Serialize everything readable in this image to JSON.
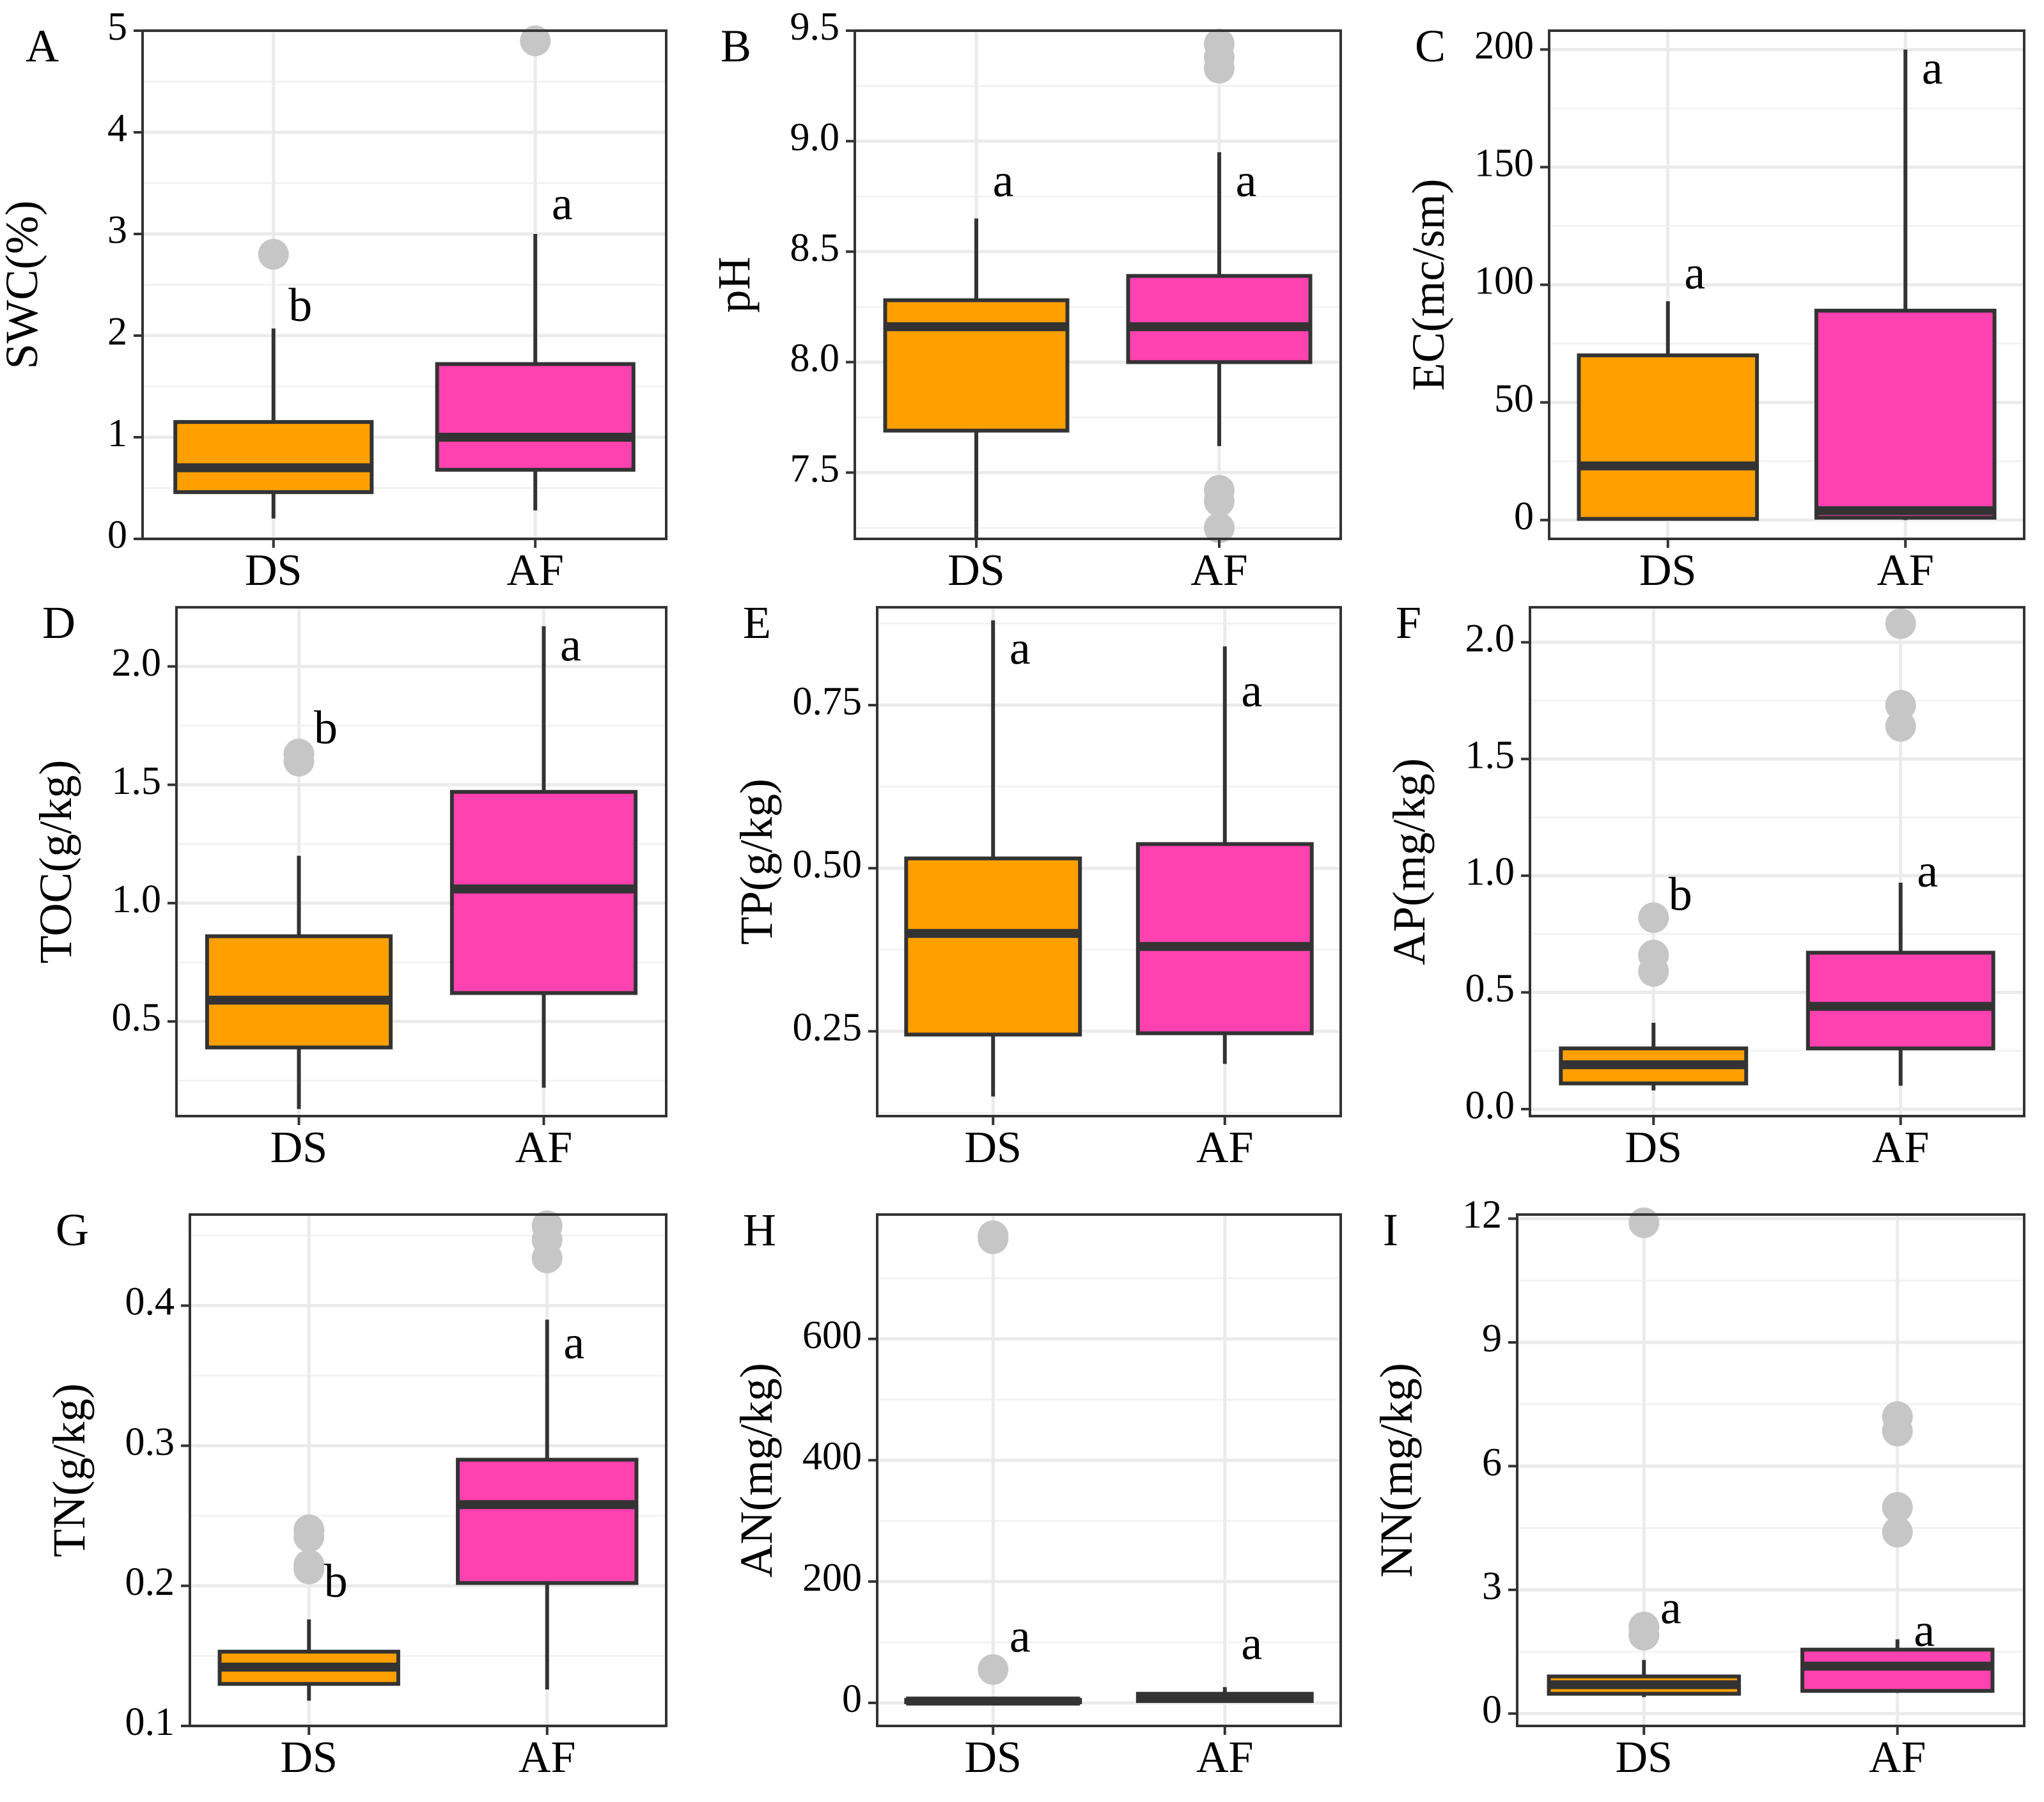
{
  "colors": {
    "DS": "#FFA000",
    "AF": "#FF42B0",
    "outlier": "#C6C6C6",
    "frame": "#333333"
  },
  "chart_data": [
    {
      "panel": "A",
      "type": "box",
      "ylabel": "SWC(%)",
      "ylim": [
        0,
        5
      ],
      "yticks": [
        0,
        1,
        2,
        3,
        4,
        5
      ],
      "ytick_labels": [
        "0",
        "1",
        "2",
        "3",
        "4",
        "5"
      ],
      "categories": [
        "DS",
        "AF"
      ],
      "groups": [
        {
          "name": "DS",
          "whisker_low": 0.2,
          "q1": 0.46,
          "median": 0.7,
          "q3": 1.15,
          "whisker_high": 2.07,
          "outliers": [
            2.8
          ],
          "sig": "b",
          "sig_y": 2.25
        },
        {
          "name": "AF",
          "whisker_low": 0.28,
          "q1": 0.68,
          "median": 1.0,
          "q3": 1.72,
          "whisker_high": 3.0,
          "outliers": [
            4.9
          ],
          "sig": "a",
          "sig_y": 3.25
        }
      ]
    },
    {
      "panel": "B",
      "type": "box",
      "ylabel": "pH",
      "ylim": [
        7.2,
        9.5
      ],
      "yticks": [
        7.5,
        8.0,
        8.5,
        9.0,
        9.5
      ],
      "ytick_labels": [
        "7.5",
        "8.0",
        "8.5",
        "9.0",
        "9.5"
      ],
      "categories": [
        "DS",
        "AF"
      ],
      "groups": [
        {
          "name": "DS",
          "whisker_low": 7.2,
          "q1": 7.69,
          "median": 8.16,
          "q3": 8.28,
          "whisker_high": 8.65,
          "outliers": [],
          "sig": "a",
          "sig_y": 8.8
        },
        {
          "name": "AF",
          "whisker_low": 7.62,
          "q1": 8.0,
          "median": 8.16,
          "q3": 8.39,
          "whisker_high": 8.95,
          "outliers": [
            9.44,
            9.38,
            9.33,
            7.42,
            7.37,
            7.25
          ],
          "sig": "a",
          "sig_y": 8.8
        }
      ]
    },
    {
      "panel": "C",
      "type": "box",
      "ylabel": "EC(mc/sm)",
      "ylim": [
        -8,
        208
      ],
      "yticks": [
        0,
        50,
        100,
        150,
        200
      ],
      "ytick_labels": [
        "0",
        "50",
        "100",
        "150",
        "200"
      ],
      "categories": [
        "DS",
        "AF"
      ],
      "groups": [
        {
          "name": "DS",
          "whisker_low": 0,
          "q1": 0.5,
          "median": 23,
          "q3": 70,
          "whisker_high": 93,
          "outliers": [],
          "sig": "a",
          "sig_y": 103
        },
        {
          "name": "AF",
          "whisker_low": 0,
          "q1": 1,
          "median": 4,
          "q3": 89,
          "whisker_high": 200,
          "outliers": [],
          "sig": "a",
          "sig_y": 190
        }
      ]
    },
    {
      "panel": "D",
      "type": "box",
      "ylabel": "TOC(g/kg)",
      "ylim": [
        0.1,
        2.25
      ],
      "yticks": [
        0.5,
        1.0,
        1.5,
        2.0
      ],
      "ytick_labels": [
        "0.5",
        "1.0",
        "1.5",
        "2.0"
      ],
      "categories": [
        "DS",
        "AF"
      ],
      "groups": [
        {
          "name": "DS",
          "whisker_low": 0.13,
          "q1": 0.39,
          "median": 0.59,
          "q3": 0.86,
          "whisker_high": 1.2,
          "outliers": [
            1.63,
            1.6
          ],
          "sig": "b",
          "sig_y": 1.72
        },
        {
          "name": "AF",
          "whisker_low": 0.22,
          "q1": 0.62,
          "median": 1.06,
          "q3": 1.47,
          "whisker_high": 2.17,
          "outliers": [],
          "sig": "a",
          "sig_y": 2.07
        }
      ]
    },
    {
      "panel": "E",
      "type": "box",
      "ylabel": "TP(g/kg)",
      "ylim": [
        0.12,
        0.9
      ],
      "yticks": [
        0.25,
        0.5,
        0.75
      ],
      "ytick_labels": [
        "0.25",
        "0.50",
        "0.75"
      ],
      "categories": [
        "DS",
        "AF"
      ],
      "groups": [
        {
          "name": "DS",
          "whisker_low": 0.15,
          "q1": 0.245,
          "median": 0.4,
          "q3": 0.515,
          "whisker_high": 0.88,
          "outliers": [],
          "sig": "a",
          "sig_y": 0.83
        },
        {
          "name": "AF",
          "whisker_low": 0.2,
          "q1": 0.247,
          "median": 0.38,
          "q3": 0.537,
          "whisker_high": 0.84,
          "outliers": [],
          "sig": "a",
          "sig_y": 0.765
        }
      ]
    },
    {
      "panel": "F",
      "type": "box",
      "ylabel": "AP(mg/kg)",
      "ylim": [
        -0.03,
        2.15
      ],
      "yticks": [
        0.0,
        0.5,
        1.0,
        1.5,
        2.0
      ],
      "ytick_labels": [
        "0.0",
        "0.5",
        "1.0",
        "1.5",
        "2.0"
      ],
      "categories": [
        "DS",
        "AF"
      ],
      "groups": [
        {
          "name": "DS",
          "whisker_low": 0.08,
          "q1": 0.11,
          "median": 0.19,
          "q3": 0.26,
          "whisker_high": 0.37,
          "outliers": [
            0.82,
            0.66,
            0.59
          ],
          "sig": "b",
          "sig_y": 0.9
        },
        {
          "name": "AF",
          "whisker_low": 0.1,
          "q1": 0.26,
          "median": 0.44,
          "q3": 0.67,
          "whisker_high": 0.97,
          "outliers": [
            2.08,
            1.73,
            1.64
          ],
          "sig": "a",
          "sig_y": 1.0
        }
      ]
    },
    {
      "panel": "G",
      "type": "box",
      "ylabel": "TN(g/kg)",
      "ylim": [
        0.1,
        0.465
      ],
      "yticks": [
        0.1,
        0.2,
        0.3,
        0.4
      ],
      "ytick_labels": [
        "0.1",
        "0.2",
        "0.3",
        "0.4"
      ],
      "categories": [
        "DS",
        "AF"
      ],
      "groups": [
        {
          "name": "DS",
          "whisker_low": 0.118,
          "q1": 0.13,
          "median": 0.142,
          "q3": 0.153,
          "whisker_high": 0.176,
          "outliers": [
            0.24,
            0.235,
            0.215,
            0.212
          ],
          "sig": "b",
          "sig_y": 0.2
        },
        {
          "name": "AF",
          "whisker_low": 0.126,
          "q1": 0.202,
          "median": 0.258,
          "q3": 0.29,
          "whisker_high": 0.39,
          "outliers": [
            0.457,
            0.447,
            0.434
          ],
          "sig": "a",
          "sig_y": 0.37
        }
      ]
    },
    {
      "panel": "H",
      "type": "box",
      "ylabel": "AN(mg/kg)",
      "ylim": [
        -38,
        805
      ],
      "yticks": [
        0,
        200,
        400,
        600
      ],
      "ytick_labels": [
        "0",
        "200",
        "400",
        "600"
      ],
      "categories": [
        "DS",
        "AF"
      ],
      "groups": [
        {
          "name": "DS",
          "whisker_low": 0,
          "q1": 1,
          "median": 3,
          "q3": 5,
          "whisker_high": 8,
          "outliers": [
            770,
            765,
            55
          ],
          "sig": "a",
          "sig_y": 102
        },
        {
          "name": "AF",
          "whisker_low": 0,
          "q1": 3,
          "median": 8,
          "q3": 15,
          "whisker_high": 26,
          "outliers": [],
          "sig": "a",
          "sig_y": 90
        }
      ]
    },
    {
      "panel": "I",
      "type": "box",
      "ylabel": "NN(mg/kg)",
      "ylim": [
        -0.3,
        12.1
      ],
      "yticks": [
        0,
        3,
        6,
        9,
        12
      ],
      "ytick_labels": [
        "0",
        "3",
        "6",
        "9",
        "12"
      ],
      "categories": [
        "DS",
        "AF"
      ],
      "groups": [
        {
          "name": "DS",
          "whisker_low": 0.4,
          "q1": 0.48,
          "median": 0.7,
          "q3": 0.9,
          "whisker_high": 1.3,
          "outliers": [
            11.9,
            2.1,
            1.9
          ],
          "sig": "a",
          "sig_y": 2.45
        },
        {
          "name": "AF",
          "whisker_low": 0.5,
          "q1": 0.55,
          "median": 1.15,
          "q3": 1.55,
          "whisker_high": 1.8,
          "outliers": [
            7.2,
            6.85,
            5.0,
            4.4
          ],
          "sig": "a",
          "sig_y": 1.9
        }
      ]
    }
  ]
}
